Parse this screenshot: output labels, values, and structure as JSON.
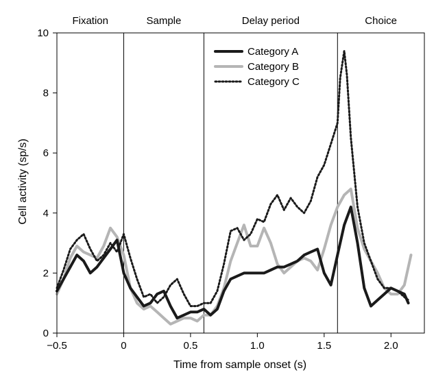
{
  "chart_data": {
    "type": "line",
    "title": "",
    "xlabel": "Time from sample onset (s)",
    "ylabel": "Cell activity (sp/s)",
    "xlim": [
      -0.5,
      2.25
    ],
    "ylim": [
      0,
      10
    ],
    "xticks": [
      -0.5,
      0,
      0.5,
      1.0,
      1.5,
      2.0
    ],
    "xtick_labels": [
      "−0.5",
      "0",
      "0.5",
      "1.0",
      "1.5",
      "2.0"
    ],
    "yticks": [
      0,
      2,
      4,
      6,
      8,
      10
    ],
    "ytick_labels": [
      "0",
      "2",
      "4",
      "6",
      "8",
      "10"
    ],
    "grid": false,
    "legend_position": "top-center",
    "periods": [
      {
        "label": "Fixation",
        "start": -0.5,
        "end": 0
      },
      {
        "label": "Sample",
        "start": 0,
        "end": 0.6
      },
      {
        "label": "Delay period",
        "start": 0.6,
        "end": 1.6
      },
      {
        "label": "Choice",
        "start": 1.6,
        "end": 2.25
      }
    ],
    "period_boundaries": [
      0,
      0.6,
      1.6
    ],
    "series": [
      {
        "name": "Category A",
        "style": "solid-thick",
        "color": "#1a1a1a",
        "x": [
          -0.5,
          -0.45,
          -0.4,
          -0.35,
          -0.3,
          -0.25,
          -0.2,
          -0.15,
          -0.1,
          -0.05,
          0.0,
          0.05,
          0.1,
          0.15,
          0.2,
          0.25,
          0.3,
          0.35,
          0.4,
          0.45,
          0.5,
          0.55,
          0.6,
          0.65,
          0.7,
          0.75,
          0.8,
          0.85,
          0.9,
          0.95,
          1.0,
          1.05,
          1.1,
          1.15,
          1.2,
          1.25,
          1.3,
          1.35,
          1.4,
          1.45,
          1.5,
          1.55,
          1.6,
          1.65,
          1.7,
          1.75,
          1.8,
          1.85,
          1.9,
          1.95,
          2.0,
          2.05,
          2.1,
          2.13
        ],
        "y": [
          1.4,
          1.8,
          2.2,
          2.6,
          2.4,
          2.0,
          2.2,
          2.5,
          2.8,
          3.1,
          2.0,
          1.5,
          1.2,
          0.9,
          1.0,
          1.3,
          1.4,
          0.9,
          0.5,
          0.6,
          0.7,
          0.7,
          0.8,
          0.6,
          0.8,
          1.4,
          1.8,
          1.9,
          2.0,
          2.0,
          2.0,
          2.0,
          2.1,
          2.2,
          2.2,
          2.3,
          2.4,
          2.6,
          2.7,
          2.8,
          2.0,
          1.6,
          2.6,
          3.6,
          4.2,
          3.0,
          1.5,
          0.9,
          1.1,
          1.3,
          1.5,
          1.4,
          1.3,
          1.0
        ]
      },
      {
        "name": "Category B",
        "style": "solid-gray",
        "color": "#b5b5b5",
        "x": [
          -0.5,
          -0.45,
          -0.4,
          -0.35,
          -0.3,
          -0.25,
          -0.2,
          -0.15,
          -0.1,
          -0.05,
          0.0,
          0.05,
          0.1,
          0.15,
          0.2,
          0.25,
          0.3,
          0.35,
          0.4,
          0.45,
          0.5,
          0.55,
          0.6,
          0.65,
          0.7,
          0.75,
          0.8,
          0.85,
          0.9,
          0.95,
          1.0,
          1.05,
          1.1,
          1.15,
          1.2,
          1.25,
          1.3,
          1.35,
          1.4,
          1.45,
          1.5,
          1.55,
          1.6,
          1.65,
          1.7,
          1.75,
          1.8,
          1.85,
          1.9,
          1.95,
          2.0,
          2.05,
          2.1,
          2.15
        ],
        "y": [
          1.3,
          1.8,
          2.5,
          2.9,
          2.7,
          2.6,
          2.5,
          2.9,
          3.5,
          3.2,
          2.6,
          1.5,
          1.0,
          0.8,
          0.9,
          0.7,
          0.5,
          0.3,
          0.4,
          0.5,
          0.5,
          0.4,
          0.6,
          0.6,
          0.9,
          1.5,
          2.4,
          3.0,
          3.6,
          2.9,
          2.9,
          3.5,
          3.0,
          2.3,
          2.0,
          2.2,
          2.4,
          2.5,
          2.4,
          2.1,
          2.8,
          3.6,
          4.2,
          4.6,
          4.8,
          3.5,
          2.8,
          2.4,
          2.0,
          1.5,
          1.3,
          1.3,
          1.6,
          2.6
        ]
      },
      {
        "name": "Category C",
        "style": "dotted",
        "color": "#1a1a1a",
        "x": [
          -0.5,
          -0.45,
          -0.4,
          -0.35,
          -0.3,
          -0.25,
          -0.2,
          -0.15,
          -0.1,
          -0.05,
          0.0,
          0.05,
          0.1,
          0.15,
          0.2,
          0.25,
          0.3,
          0.35,
          0.4,
          0.45,
          0.5,
          0.55,
          0.6,
          0.65,
          0.7,
          0.75,
          0.8,
          0.85,
          0.9,
          0.95,
          1.0,
          1.05,
          1.1,
          1.15,
          1.2,
          1.25,
          1.3,
          1.35,
          1.4,
          1.45,
          1.5,
          1.55,
          1.6,
          1.62,
          1.65,
          1.67,
          1.7,
          1.75,
          1.8,
          1.85,
          1.9,
          1.95,
          2.0,
          2.05,
          2.1,
          2.13
        ],
        "y": [
          1.5,
          2.1,
          2.8,
          3.1,
          3.3,
          2.8,
          2.4,
          2.6,
          3.0,
          2.7,
          3.3,
          2.5,
          1.8,
          1.2,
          1.3,
          1.0,
          1.2,
          1.6,
          1.8,
          1.3,
          0.9,
          0.9,
          1.0,
          1.0,
          1.4,
          2.3,
          3.4,
          3.5,
          3.1,
          3.3,
          3.8,
          3.7,
          4.3,
          4.6,
          4.1,
          4.5,
          4.2,
          4.0,
          4.4,
          5.2,
          5.6,
          6.3,
          7.0,
          8.5,
          9.4,
          8.6,
          6.5,
          4.2,
          3.0,
          2.4,
          1.8,
          1.5,
          1.5,
          1.4,
          1.2,
          1.1
        ]
      },
      {
        "name": "",
        "style": "boundary",
        "color": "#000000",
        "x": [],
        "y": []
      }
    ]
  }
}
